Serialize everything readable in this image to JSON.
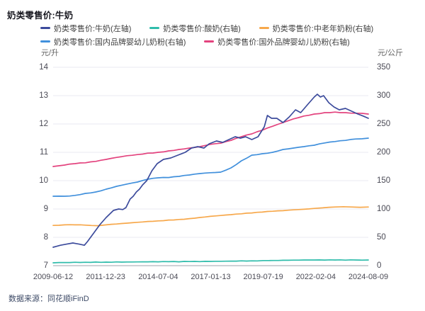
{
  "title": "奶类零售价:牛奶",
  "source": "数据来源：同花顺iFinD",
  "axes": {
    "left_unit": "元/升",
    "right_unit": "元/公斤"
  },
  "colors": {
    "grid_line": "#e9e9f2",
    "axis_line": "#9fa3ab",
    "milk_navy": "#3c4b9c",
    "yogurt_teal": "#2fbcab",
    "powder_orange": "#f7a84b",
    "domestic_blue": "#4190dc",
    "foreign_pink": "#e3437e"
  },
  "legend": {
    "rows": [
      [
        {
          "label": "奶类零售价:牛奶(左轴)",
          "color": "#3c4b9c"
        },
        {
          "label": "奶类零售价:酸奶(右轴)",
          "color": "#2fbcab"
        },
        {
          "label": "奶类零售价:中老年奶粉(右轴)",
          "color": "#f7a84b"
        }
      ],
      [
        {
          "label": "奶类零售价:国内品牌婴幼儿奶粉(右轴)",
          "color": "#4190dc"
        },
        {
          "label": "奶类零售价:国外品牌婴幼儿奶粉(右轴)",
          "color": "#e3437e"
        }
      ]
    ]
  },
  "chart_data": {
    "type": "line",
    "title": "奶类零售价:牛奶",
    "x_range": [
      2009.45,
      2024.6
    ],
    "x_tick_labels": [
      "2009-06-12",
      "2011-12-23",
      "2014-07-04",
      "2017-01-13",
      "2019-07-19",
      "2022-02-04",
      "2024-08-09"
    ],
    "left_axis": {
      "label": "元/升",
      "min": 7,
      "max": 14,
      "ticks": [
        14,
        13,
        12,
        11,
        10,
        9,
        8,
        7
      ]
    },
    "right_axis": {
      "label": "元/公斤",
      "min": 0,
      "max": 350,
      "ticks": [
        350,
        300,
        250,
        200,
        150,
        100,
        50,
        0
      ]
    },
    "grid": true,
    "legend_position": "top",
    "series": [
      {
        "name": "奶类零售价:牛奶(左轴)",
        "axis": "left",
        "unit": "元/升",
        "color": "#3c4b9c",
        "points": [
          [
            2009.45,
            7.65
          ],
          [
            2009.6,
            7.68
          ],
          [
            2009.8,
            7.72
          ],
          [
            2010.1,
            7.76
          ],
          [
            2010.4,
            7.8
          ],
          [
            2010.55,
            7.78
          ],
          [
            2010.7,
            7.76
          ],
          [
            2010.95,
            7.72
          ],
          [
            2011.1,
            7.85
          ],
          [
            2011.4,
            8.15
          ],
          [
            2011.7,
            8.45
          ],
          [
            2012.0,
            8.7
          ],
          [
            2012.35,
            8.95
          ],
          [
            2012.6,
            9.0
          ],
          [
            2012.8,
            8.98
          ],
          [
            2012.95,
            9.05
          ],
          [
            2013.15,
            9.35
          ],
          [
            2013.3,
            9.45
          ],
          [
            2013.45,
            9.6
          ],
          [
            2013.6,
            9.7
          ],
          [
            2013.75,
            9.85
          ],
          [
            2013.95,
            10.0
          ],
          [
            2014.2,
            10.35
          ],
          [
            2014.45,
            10.6
          ],
          [
            2014.75,
            10.75
          ],
          [
            2015.1,
            10.8
          ],
          [
            2015.45,
            10.9
          ],
          [
            2015.8,
            11.0
          ],
          [
            2016.1,
            11.15
          ],
          [
            2016.4,
            11.2
          ],
          [
            2016.7,
            11.15
          ],
          [
            2016.95,
            11.3
          ],
          [
            2017.3,
            11.4
          ],
          [
            2017.6,
            11.35
          ],
          [
            2017.9,
            11.45
          ],
          [
            2018.2,
            11.55
          ],
          [
            2018.45,
            11.5
          ],
          [
            2018.7,
            11.55
          ],
          [
            2019.0,
            11.45
          ],
          [
            2019.3,
            11.55
          ],
          [
            2019.6,
            11.9
          ],
          [
            2019.75,
            12.3
          ],
          [
            2019.95,
            12.2
          ],
          [
            2020.2,
            12.2
          ],
          [
            2020.5,
            12.05
          ],
          [
            2020.8,
            12.25
          ],
          [
            2021.1,
            12.5
          ],
          [
            2021.35,
            12.4
          ],
          [
            2021.7,
            12.7
          ],
          [
            2022.0,
            12.95
          ],
          [
            2022.15,
            13.05
          ],
          [
            2022.3,
            12.95
          ],
          [
            2022.45,
            13.0
          ],
          [
            2022.7,
            12.75
          ],
          [
            2022.95,
            12.6
          ],
          [
            2023.2,
            12.5
          ],
          [
            2023.5,
            12.55
          ],
          [
            2023.8,
            12.45
          ],
          [
            2024.1,
            12.35
          ],
          [
            2024.35,
            12.28
          ],
          [
            2024.6,
            12.2
          ]
        ]
      },
      {
        "name": "奶类零售价:酸奶(右轴)",
        "axis": "right",
        "unit": "元/公斤",
        "color": "#2fbcab",
        "points": [
          [
            2009.45,
            5
          ],
          [
            2010,
            5.5
          ],
          [
            2011,
            6
          ],
          [
            2012,
            6.2
          ],
          [
            2013,
            6.5
          ],
          [
            2014,
            6.8
          ],
          [
            2015,
            7
          ],
          [
            2016,
            7.2
          ],
          [
            2017,
            7.5
          ],
          [
            2018,
            8
          ],
          [
            2019,
            8.5
          ],
          [
            2019.8,
            9
          ],
          [
            2020.5,
            9.5
          ],
          [
            2021,
            9.8
          ],
          [
            2022,
            10
          ],
          [
            2023,
            10
          ],
          [
            2024,
            10
          ],
          [
            2024.6,
            10
          ]
        ]
      },
      {
        "name": "奶类零售价:中老年奶粉(右轴)",
        "axis": "right",
        "unit": "元/公斤",
        "color": "#f7a84b",
        "points": [
          [
            2009.45,
            71
          ],
          [
            2010,
            72
          ],
          [
            2010.5,
            72
          ],
          [
            2011,
            71.5
          ],
          [
            2011.6,
            70.5
          ],
          [
            2012,
            72
          ],
          [
            2012.5,
            73.5
          ],
          [
            2013,
            75
          ],
          [
            2013.5,
            76.5
          ],
          [
            2014,
            78
          ],
          [
            2014.5,
            79
          ],
          [
            2015,
            80.5
          ],
          [
            2015.5,
            81.5
          ],
          [
            2016,
            83
          ],
          [
            2016.5,
            85
          ],
          [
            2017,
            87
          ],
          [
            2017.5,
            88.5
          ],
          [
            2018,
            90
          ],
          [
            2018.5,
            91.5
          ],
          [
            2019,
            93
          ],
          [
            2019.5,
            94.5
          ],
          [
            2020,
            96
          ],
          [
            2020.5,
            97
          ],
          [
            2021,
            98.5
          ],
          [
            2021.5,
            99.5
          ],
          [
            2022,
            101
          ],
          [
            2022.4,
            102
          ],
          [
            2022.7,
            103
          ],
          [
            2023,
            103.5
          ],
          [
            2023.4,
            104
          ],
          [
            2023.8,
            103.5
          ],
          [
            2024.2,
            103
          ],
          [
            2024.6,
            103.5
          ]
        ]
      },
      {
        "name": "奶类零售价:国内品牌婴幼儿奶粉(右轴)",
        "axis": "right",
        "unit": "元/公斤",
        "color": "#4190dc",
        "points": [
          [
            2009.45,
            122.5
          ],
          [
            2010,
            122.5
          ],
          [
            2010.5,
            124
          ],
          [
            2011,
            127.5
          ],
          [
            2011.5,
            130
          ],
          [
            2012,
            135
          ],
          [
            2012.5,
            140
          ],
          [
            2013,
            144
          ],
          [
            2013.5,
            147.5
          ],
          [
            2014,
            152.5
          ],
          [
            2014.5,
            155
          ],
          [
            2015,
            155.5
          ],
          [
            2015.5,
            157.5
          ],
          [
            2016,
            160
          ],
          [
            2016.5,
            162.5
          ],
          [
            2017,
            164
          ],
          [
            2017.5,
            165
          ],
          [
            2018,
            172.5
          ],
          [
            2018.5,
            185
          ],
          [
            2019,
            195
          ],
          [
            2019.5,
            197.5
          ],
          [
            2020,
            200
          ],
          [
            2020.5,
            205
          ],
          [
            2021,
            207.5
          ],
          [
            2021.5,
            210
          ],
          [
            2022,
            212.5
          ],
          [
            2022.5,
            216.5
          ],
          [
            2023,
            219
          ],
          [
            2023.5,
            221
          ],
          [
            2024,
            223.5
          ],
          [
            2024.6,
            225
          ]
        ]
      },
      {
        "name": "奶类零售价:国外品牌婴幼儿奶粉(右轴)",
        "axis": "right",
        "unit": "元/公斤",
        "color": "#e3437e",
        "points": [
          [
            2009.45,
            175
          ],
          [
            2010,
            177.5
          ],
          [
            2010.5,
            180
          ],
          [
            2011,
            181.5
          ],
          [
            2011.5,
            184
          ],
          [
            2012,
            187.5
          ],
          [
            2012.5,
            191
          ],
          [
            2013,
            194
          ],
          [
            2013.5,
            196
          ],
          [
            2014,
            198.5
          ],
          [
            2014.5,
            200
          ],
          [
            2015,
            202.5
          ],
          [
            2015.5,
            205
          ],
          [
            2016,
            207.5
          ],
          [
            2016.5,
            210
          ],
          [
            2017,
            214
          ],
          [
            2017.5,
            216
          ],
          [
            2018,
            221
          ],
          [
            2018.5,
            227.5
          ],
          [
            2019,
            232.5
          ],
          [
            2019.5,
            239
          ],
          [
            2020,
            246
          ],
          [
            2020.5,
            252.5
          ],
          [
            2021,
            259
          ],
          [
            2021.5,
            264
          ],
          [
            2022,
            267.5
          ],
          [
            2022.5,
            270
          ],
          [
            2023,
            271
          ],
          [
            2023.5,
            270
          ],
          [
            2024,
            269
          ],
          [
            2024.6,
            267.5
          ]
        ]
      }
    ]
  }
}
